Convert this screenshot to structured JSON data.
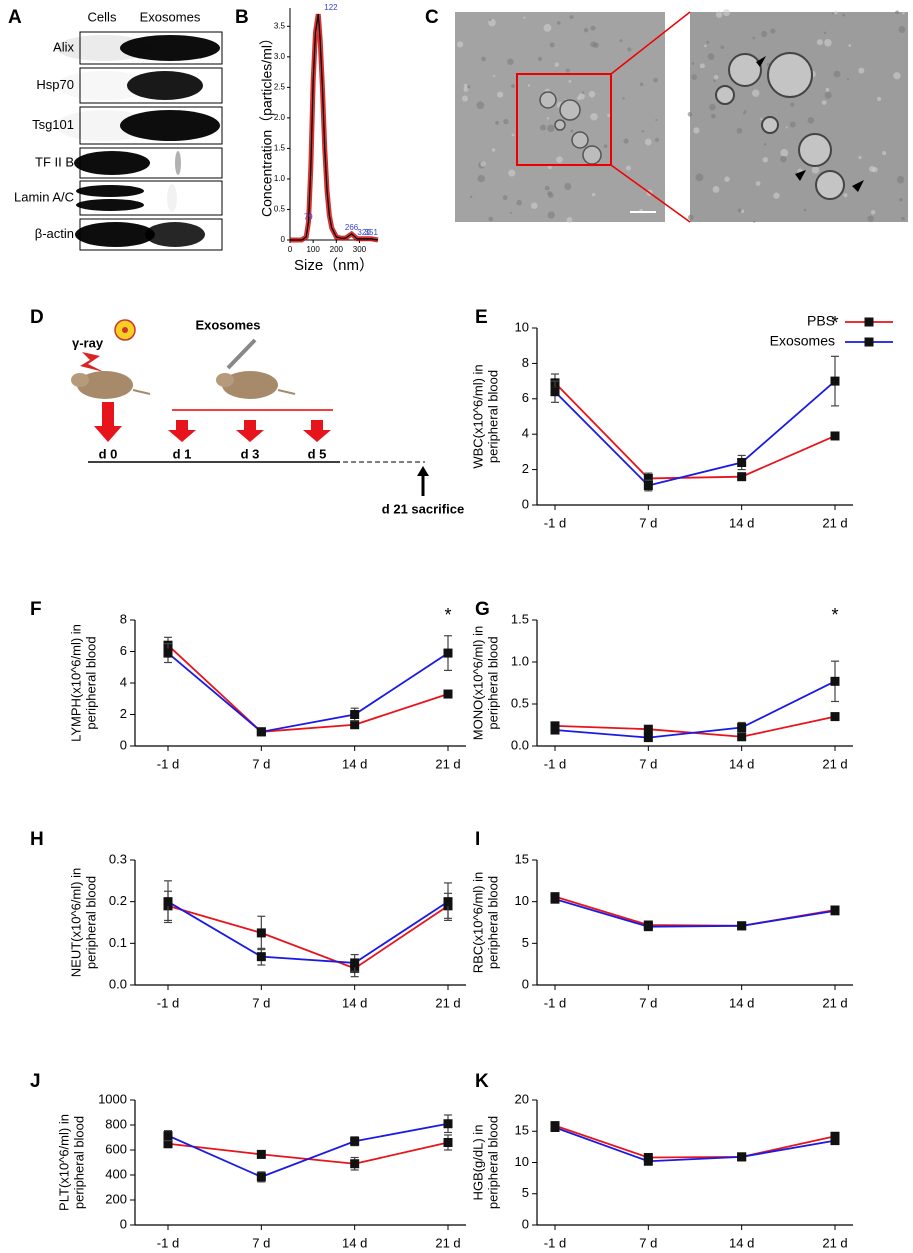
{
  "panels": {
    "A": {
      "label": "A",
      "columns": [
        "Cells",
        "Exosomes"
      ],
      "rows": [
        "Alix",
        "Hsp70",
        "Tsg101",
        "TF II B",
        "Lamin A/C",
        "β-actin"
      ]
    },
    "C": {
      "label": "C"
    },
    "D": {
      "label": "D",
      "radiation": "γ-ray",
      "treatment": "Exosomes",
      "days": [
        "d 0",
        "d 1",
        "d 3",
        "d 5"
      ],
      "endpoint": "d 21 sacrifice"
    }
  },
  "chart_data": [
    {
      "type": "curve",
      "panel_label": "B",
      "xlabel": "Size（nm）",
      "ylabel": "Concentration（particles/ml）",
      "x": [
        0,
        50,
        70,
        80,
        90,
        100,
        110,
        122,
        130,
        140,
        150,
        160,
        170,
        180,
        200,
        220,
        240,
        266,
        290,
        320,
        351,
        380
      ],
      "values": [
        0,
        0,
        0.05,
        0.3,
        1.2,
        2.6,
        3.4,
        3.7,
        3.3,
        2.5,
        1.5,
        0.8,
        0.4,
        0.2,
        0.05,
        0.03,
        0.03,
        0.1,
        0.02,
        0.02,
        0.02,
        0
      ],
      "color": "#cc0000",
      "xlim": [
        0,
        380
      ],
      "ylim": [
        0,
        3.8
      ],
      "xticks": [
        0,
        100,
        200,
        300
      ],
      "yticks": [
        0,
        {
          "value": 0.5,
          "label": "0.5"
        },
        {
          "value": 1,
          "label": "1.0"
        },
        {
          "value": 1.5,
          "label": "1.5"
        },
        {
          "value": 2,
          "label": "2.0"
        },
        {
          "value": 2.5,
          "label": "2.5"
        },
        {
          "value": 3,
          "label": "3.0"
        },
        {
          "value": 3.5,
          "label": "3.5"
        }
      ],
      "annotations": [
        {
          "text": "122",
          "x": 122
        },
        {
          "text": "79",
          "x": 79
        },
        {
          "text": "266",
          "x": 266
        },
        {
          "text": "320",
          "x": 320
        },
        {
          "text": "351",
          "x": 351
        }
      ]
    },
    {
      "type": "line",
      "panel_label": "E",
      "ylabel": [
        "WBC(x10^6/ml) in",
        "peripheral blood"
      ],
      "categories": [
        "-1 d",
        "7 d",
        "14 d",
        "21 d"
      ],
      "ylim": [
        0,
        10
      ],
      "yticks": [
        0,
        2,
        4,
        6,
        8,
        10
      ],
      "legend": "upper right",
      "series": [
        {
          "name": "PBS",
          "color": "#e8141c",
          "values": [
            6.9,
            1.5,
            1.6,
            3.9
          ],
          "errors": [
            0.5,
            0.3,
            0.2,
            0.2
          ]
        },
        {
          "name": "Exosomes",
          "color": "#1a1ae6",
          "values": [
            6.4,
            1.1,
            2.4,
            7.0
          ],
          "errors": [
            0.6,
            0.3,
            0.4,
            1.4
          ]
        }
      ],
      "annotations": [
        {
          "text": "*",
          "x": "21 d"
        }
      ]
    },
    {
      "type": "line",
      "panel_label": "F",
      "ylabel": [
        "LYMPH(x10^6/ml) in",
        "peripheral blood"
      ],
      "categories": [
        "-1 d",
        "7 d",
        "14 d",
        "21 d"
      ],
      "ylim": [
        0,
        8
      ],
      "yticks": [
        0,
        2,
        4,
        6,
        8
      ],
      "series": [
        {
          "color": "#e8141c",
          "values": [
            6.4,
            0.9,
            1.35,
            3.3
          ],
          "errors": [
            0.5,
            0.1,
            0.2,
            0.2
          ]
        },
        {
          "color": "#1a1ae6",
          "values": [
            5.9,
            0.9,
            2.0,
            5.9
          ],
          "errors": [
            0.6,
            0.1,
            0.4,
            1.1
          ]
        }
      ],
      "annotations": [
        {
          "text": "*",
          "x": "21 d"
        }
      ]
    },
    {
      "type": "line",
      "panel_label": "G",
      "ylabel": [
        "MONO(x10^6/ml) in",
        "peripheral blood"
      ],
      "categories": [
        "-1 d",
        "7 d",
        "14 d",
        "21 d"
      ],
      "ylim": [
        0,
        1.5
      ],
      "yticks": [
        {
          "value": 0,
          "label": "0.0"
        },
        {
          "value": 0.5,
          "label": "0.5"
        },
        {
          "value": 1,
          "label": "1.0"
        },
        {
          "value": 1.5,
          "label": "1.5"
        }
      ],
      "series": [
        {
          "color": "#e8141c",
          "values": [
            0.24,
            0.2,
            0.11,
            0.35
          ],
          "errors": [
            0.03,
            0.03,
            0.03,
            0.04
          ]
        },
        {
          "color": "#1a1ae6",
          "values": [
            0.19,
            0.1,
            0.22,
            0.77
          ],
          "errors": [
            0.03,
            0.02,
            0.06,
            0.24
          ]
        }
      ],
      "annotations": [
        {
          "text": "*",
          "x": "21 d"
        }
      ]
    },
    {
      "type": "line",
      "panel_label": "H",
      "ylabel": [
        "NEUT(x10^6/ml) in",
        "peripheral blood"
      ],
      "categories": [
        "-1 d",
        "7 d",
        "14 d",
        "21 d"
      ],
      "ylim": [
        0,
        0.3
      ],
      "yticks": [
        {
          "value": 0,
          "label": "0.0"
        },
        0.1,
        0.2,
        0.3
      ],
      "series": [
        {
          "color": "#e8141c",
          "values": [
            0.19,
            0.125,
            0.04,
            0.19
          ],
          "errors": [
            0.035,
            0.04,
            0.02,
            0.03
          ]
        },
        {
          "color": "#1a1ae6",
          "values": [
            0.2,
            0.068,
            0.053,
            0.2
          ],
          "errors": [
            0.05,
            0.02,
            0.02,
            0.045
          ]
        }
      ]
    },
    {
      "type": "line",
      "panel_label": "I",
      "ylabel": [
        "RBC(x10^6/ml) in",
        "peripheral blood"
      ],
      "categories": [
        "-1 d",
        "7 d",
        "14 d",
        "21 d"
      ],
      "ylim": [
        0,
        15
      ],
      "yticks": [
        0,
        5,
        10,
        15
      ],
      "series": [
        {
          "color": "#e8141c",
          "values": [
            10.6,
            7.2,
            7.1,
            9.0
          ],
          "errors": [
            0.3,
            0.2,
            0.2,
            0.2
          ]
        },
        {
          "color": "#1a1ae6",
          "values": [
            10.3,
            7.0,
            7.1,
            8.9
          ],
          "errors": [
            0.3,
            0.2,
            0.2,
            0.2
          ]
        }
      ]
    },
    {
      "type": "line",
      "panel_label": "J",
      "ylabel": [
        "PLT(x10^6/ml) in",
        "peripheral blood"
      ],
      "categories": [
        "-1 d",
        "7 d",
        "14 d",
        "21 d"
      ],
      "ylim": [
        0,
        1000
      ],
      "yticks": [
        0,
        200,
        400,
        600,
        800,
        1000
      ],
      "series": [
        {
          "color": "#e8141c",
          "values": [
            650,
            565,
            490,
            660
          ],
          "errors": [
            30,
            30,
            50,
            60
          ]
        },
        {
          "color": "#1a1ae6",
          "values": [
            715,
            385,
            670,
            810
          ],
          "errors": [
            40,
            40,
            35,
            70
          ]
        }
      ]
    },
    {
      "type": "line",
      "panel_label": "K",
      "ylabel": [
        "HGB(g/dL) in",
        "peripheral blood"
      ],
      "categories": [
        "-1 d",
        "7 d",
        "14 d",
        "21 d"
      ],
      "ylim": [
        0,
        20
      ],
      "yticks": [
        0,
        5,
        10,
        15,
        20
      ],
      "series": [
        {
          "color": "#e8141c",
          "values": [
            15.9,
            10.8,
            10.9,
            14.2
          ],
          "errors": [
            0.3,
            0.3,
            0.4,
            0.4
          ]
        },
        {
          "color": "#1a1ae6",
          "values": [
            15.6,
            10.2,
            10.9,
            13.5
          ],
          "errors": [
            0.3,
            0.3,
            0.4,
            0.4
          ]
        }
      ]
    }
  ]
}
